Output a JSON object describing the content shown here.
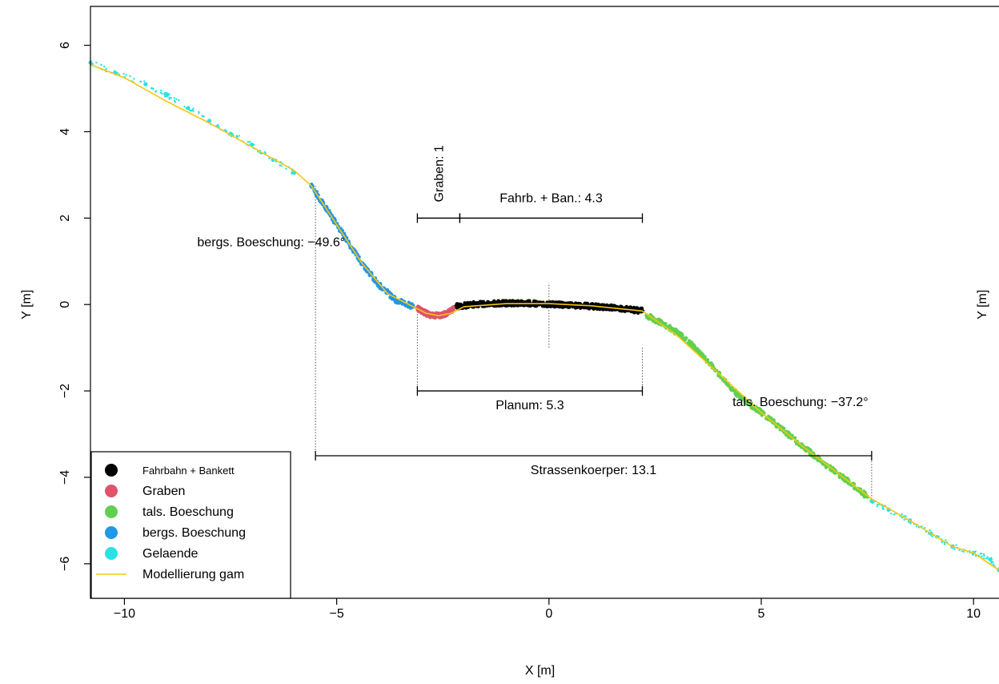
{
  "chart_data": {
    "type": "scatter",
    "xlabel": "X [m]",
    "ylabel": "Y [m]",
    "ylabel_right": "Y [m]",
    "xlim": [
      -10.8,
      10.6
    ],
    "ylim": [
      -6.8,
      6.9
    ],
    "xticks": [
      -10,
      -5,
      0,
      5,
      10
    ],
    "yticks": [
      -6,
      -4,
      -2,
      0,
      2,
      4,
      6
    ],
    "xtick_labels": [
      "−10",
      "−5",
      "0",
      "5",
      "10"
    ],
    "ytick_labels": [
      "−6",
      "−4",
      "−2",
      "0",
      "2",
      "4",
      "6"
    ],
    "grid": false,
    "legend_position": "bottom-left",
    "series": [
      {
        "name": "Fahrbahn + Bankett",
        "color": "#000000",
        "x": [
          -2.2,
          -1.8,
          -1.4,
          -1.0,
          -0.6,
          -0.2,
          0.2,
          0.6,
          1.0,
          1.4,
          1.8,
          2.2
        ],
        "y": [
          -0.05,
          0.0,
          0.02,
          0.03,
          0.03,
          0.02,
          0.0,
          -0.02,
          -0.04,
          -0.07,
          -0.1,
          -0.15
        ]
      },
      {
        "name": "Graben",
        "color": "#df536b",
        "x": [
          -3.1,
          -2.95,
          -2.8,
          -2.6,
          -2.4,
          -2.25
        ],
        "y": [
          -0.08,
          -0.18,
          -0.24,
          -0.26,
          -0.2,
          -0.1
        ]
      },
      {
        "name": "tals. Boeschung",
        "color": "#61d04f",
        "x": [
          2.3,
          2.7,
          3.1,
          3.5,
          4.0,
          4.5,
          5.0,
          5.5,
          6.0,
          6.5,
          7.0,
          7.5
        ],
        "y": [
          -0.25,
          -0.45,
          -0.7,
          -1.05,
          -1.6,
          -2.15,
          -2.5,
          -2.9,
          -3.3,
          -3.7,
          -4.05,
          -4.45
        ]
      },
      {
        "name": "bergs. Boeschung",
        "color": "#2297e6",
        "x": [
          -5.6,
          -5.2,
          -4.8,
          -4.4,
          -4.0,
          -3.6,
          -3.2
        ],
        "y": [
          2.75,
          2.15,
          1.55,
          0.95,
          0.45,
          0.1,
          -0.05
        ]
      },
      {
        "name": "Gelaende",
        "color": "#28e2e5",
        "x": [
          -10.8,
          -10.2,
          -9.5,
          -9.0,
          -8.5,
          -8.0,
          -7.5,
          -7.0,
          -6.5,
          -6.0,
          7.6,
          8.0,
          8.5,
          9.0,
          9.5,
          10.0,
          10.4,
          10.6
        ],
        "y": [
          5.6,
          5.35,
          5.1,
          4.85,
          4.55,
          4.25,
          3.95,
          3.7,
          3.35,
          3.05,
          -4.55,
          -4.75,
          -5.0,
          -5.3,
          -5.6,
          -5.75,
          -5.9,
          -6.15
        ]
      },
      {
        "name": "Modellierung gam",
        "color": "#f5c710",
        "type": "line",
        "x": [
          -10.8,
          -10.0,
          -9.0,
          -8.0,
          -7.0,
          -6.0,
          -5.6,
          -5.0,
          -4.4,
          -3.8,
          -3.2,
          -2.9,
          -2.6,
          -2.3,
          -2.0,
          -1.0,
          0.0,
          1.0,
          2.2,
          3.0,
          4.0,
          5.0,
          6.0,
          7.0,
          7.6,
          8.5,
          9.5,
          10.0,
          10.6
        ],
        "y": [
          5.55,
          5.25,
          4.7,
          4.2,
          3.65,
          3.1,
          2.75,
          1.85,
          0.95,
          0.25,
          -0.05,
          -0.2,
          -0.26,
          -0.2,
          -0.05,
          0.02,
          0.02,
          -0.03,
          -0.15,
          -0.7,
          -1.6,
          -2.5,
          -3.3,
          -4.05,
          -4.5,
          -5.0,
          -5.6,
          -5.75,
          -6.15
        ]
      }
    ],
    "annotations": [
      {
        "text": "Graben: 1",
        "x0": -3.1,
        "x1": -2.1,
        "y": 2.0,
        "rotated": true
      },
      {
        "text": "Fahrb. + Ban.: 4.3",
        "x0": -2.1,
        "x1": 2.2,
        "y": 2.0
      },
      {
        "text": "Planum: 5.3",
        "x0": -3.1,
        "x1": 2.2,
        "y": -2.0
      },
      {
        "text": "Strassenkoerper: 13.1",
        "x0": -5.5,
        "x1": 7.6,
        "y": -3.5
      },
      {
        "text": "bergs. Boeschung: −49.6°",
        "x": -5.6,
        "y": 1.35
      },
      {
        "text": "tals. Boeschung: −37.2°",
        "x": 4.7,
        "y": -2.35
      }
    ],
    "vertical_guides": [
      -5.5,
      -3.1,
      0.0,
      2.2,
      7.6
    ]
  }
}
